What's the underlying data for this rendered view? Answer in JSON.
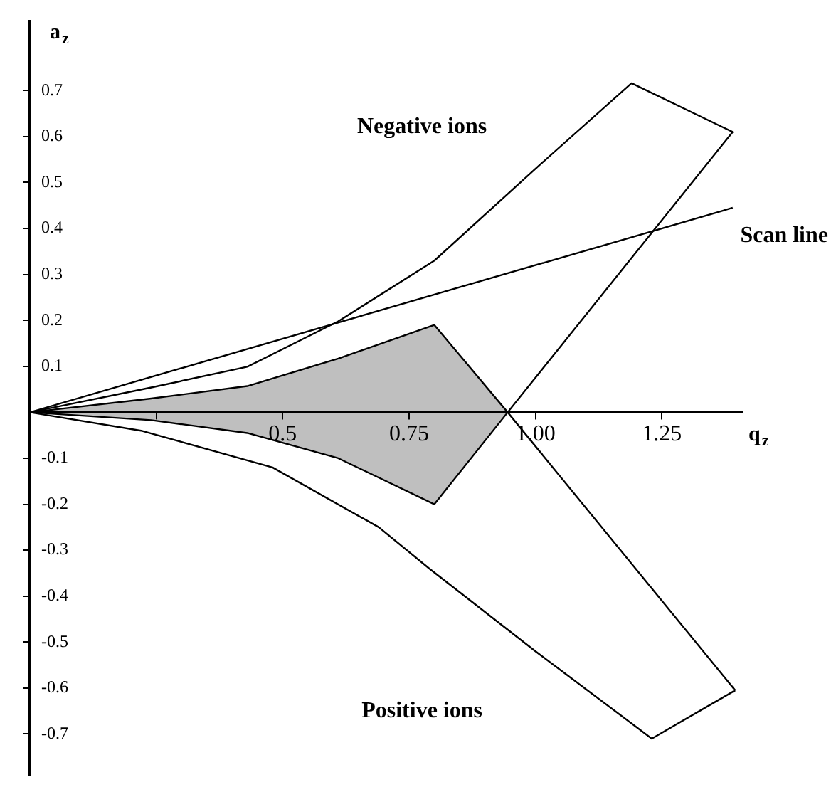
{
  "chart_data": {
    "type": "line",
    "xlabel": "q$_{z}$",
    "ylabel": "a$_{z}$",
    "xlim": [
      0,
      1.41
    ],
    "ylim": [
      -0.79,
      0.85
    ],
    "xticks": [
      {
        "value": 0.25,
        "label": null
      },
      0.5,
      0.75,
      {
        "value": 1,
        "label": "1.00"
      },
      1.25
    ],
    "yticks": [
      -0.7,
      -0.6,
      -0.5,
      -0.4,
      -0.3,
      -0.2,
      -0.1,
      0.1,
      0.2,
      0.3,
      0.4,
      0.5,
      0.6,
      0.7
    ],
    "grid": false,
    "legend": false,
    "marker": "none",
    "annotations": [
      "Negative ions",
      "Positive ions"
    ],
    "series": [
      {
        "color": "#000000",
        "x": [
          0,
          0.24,
          0.43,
          0.61,
          0.8,
          1.0,
          1.19,
          1.39
        ],
        "values": [
          0,
          0.054,
          0.099,
          0.198,
          0.33,
          0.53,
          0.716,
          0.61
        ]
      },
      {
        "color": "#000000",
        "x": [
          0,
          0.24,
          0.43,
          0.61,
          0.8,
          0.945,
          1.39
        ],
        "values": [
          0,
          -0.017,
          -0.045,
          -0.1,
          -0.2,
          0,
          0.61
        ]
      },
      {
        "color": "#000000",
        "x": [
          0,
          0.24,
          0.43,
          0.61,
          0.8,
          0.945,
          1.395
        ],
        "values": [
          0,
          0.03,
          0.057,
          0.117,
          0.19,
          0,
          -0.605
        ]
      },
      {
        "type": "area",
        "color": "#000000",
        "x": [
          0,
          0.24,
          0.43,
          0.61,
          0.8,
          0.945,
          0.8,
          0.61,
          0.43,
          0.24,
          0
        ],
        "values": [
          0,
          0.03,
          0.057,
          0.117,
          0.19,
          0,
          -0.2,
          -0.1,
          -0.045,
          -0.017,
          0
        ]
      },
      {
        "color": "#000000",
        "x": [
          0,
          0.22,
          0.48,
          0.69,
          0.79,
          1.0,
          1.23,
          1.395
        ],
        "values": [
          0,
          -0.04,
          -0.12,
          -0.25,
          -0.34,
          -0.52,
          -0.71,
          -0.605
        ]
      },
      {
        "name": "Scan line",
        "color": "#000000",
        "x": [
          0,
          1.39
        ],
        "values": [
          0,
          0.445
        ]
      }
    ]
  }
}
